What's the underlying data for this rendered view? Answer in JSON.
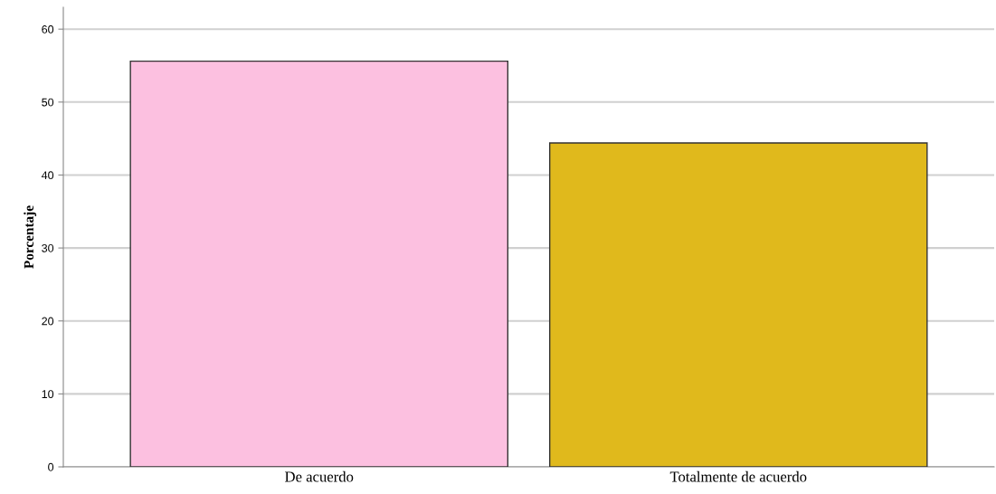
{
  "chart_data": {
    "type": "bar",
    "ylabel": "Porcentaje",
    "categories": [
      "De acuerdo",
      "Totalmente de acuerdo"
    ],
    "values": [
      55.6,
      44.4
    ],
    "colors": [
      "#fcc0e0",
      "#e0b91c"
    ],
    "ylim": [
      0,
      63
    ],
    "yticks": [
      0,
      10,
      20,
      30,
      40,
      50,
      60
    ],
    "grid": "y"
  }
}
